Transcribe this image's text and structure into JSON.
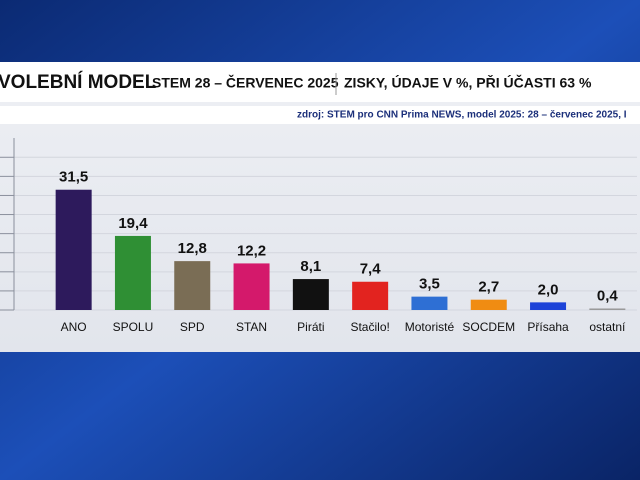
{
  "chart_data": {
    "type": "bar",
    "title": "VOLEBNÍ MODEL",
    "subtitle": "STEM 28 – ČERVENEC 2025",
    "note": "ZISKY, ÚDAJE V %, PŘI ÚČASTI 63 %",
    "source": "zdroj: STEM pro CNN Prima NEWS, model 2025: 28 – červenec 2025, I",
    "categories": [
      "ANO",
      "SPOLU",
      "SPD",
      "STAN",
      "Piráti",
      "Stačilo!",
      "Motoristé",
      "SOCDEM",
      "Přísaha",
      "ostatní"
    ],
    "values": [
      31.5,
      19.4,
      12.8,
      12.2,
      8.1,
      7.4,
      3.5,
      2.7,
      2.0,
      0.4
    ],
    "value_labels": [
      "31,5",
      "19,4",
      "12,8",
      "12,2",
      "8,1",
      "7,4",
      "3,5",
      "2,7",
      "2,0",
      "0,4"
    ],
    "colors": [
      "#2d1a5c",
      "#2f8f34",
      "#7a6d55",
      "#d4196b",
      "#111111",
      "#e2231f",
      "#2e6fd4",
      "#f08c12",
      "#1d43d8",
      "#9a9a9a"
    ],
    "ylim": [
      0,
      44
    ],
    "yticks": [
      0,
      5,
      10,
      15,
      20,
      25,
      30,
      35,
      40
    ],
    "grid": true
  }
}
